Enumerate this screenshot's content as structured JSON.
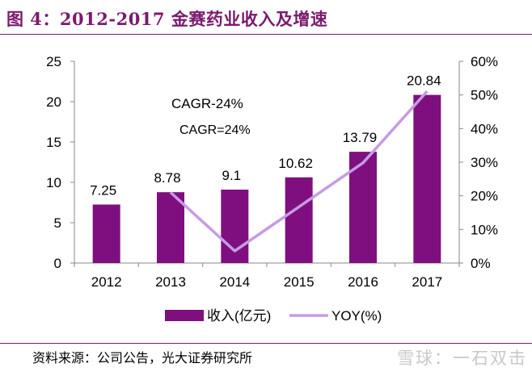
{
  "title": "图 4：2012-2017 金赛药业收入及增速",
  "source": "资料来源：公司公告，光大证券研究所",
  "watermark": "雪球：一石双击",
  "colors": {
    "bar": "#7f0f7e",
    "line": "#c79ae6",
    "title": "#7a1a6e"
  },
  "chart_data": {
    "type": "bar",
    "categories": [
      "2012",
      "2013",
      "2014",
      "2015",
      "2016",
      "2017"
    ],
    "series": [
      {
        "name": "收入(亿元)",
        "type": "bar",
        "axis": "left",
        "values": [
          7.25,
          8.78,
          9.1,
          10.62,
          13.79,
          20.84
        ]
      },
      {
        "name": "YOY(%)",
        "type": "line",
        "axis": "right",
        "values": [
          null,
          0.21,
          0.036,
          0.167,
          0.298,
          0.511
        ]
      }
    ],
    "data_labels": [
      "7.25",
      "8.78",
      "9.1",
      "10.62",
      "13.79",
      "20.84"
    ],
    "left_axis": {
      "ylim": [
        0,
        25
      ],
      "ticks": [
        "0",
        "5",
        "10",
        "15",
        "20",
        "25"
      ]
    },
    "right_axis": {
      "ylim": [
        0,
        0.6
      ],
      "ticks": [
        "0%",
        "10%",
        "20%",
        "30%",
        "40%",
        "50%",
        "60%"
      ]
    },
    "annotations": [
      "CAGR-24%",
      "CAGR=24%"
    ],
    "legend": {
      "placement": "bottom",
      "items": [
        "收入(亿元)",
        "YOY(%)"
      ]
    },
    "grid": false
  }
}
